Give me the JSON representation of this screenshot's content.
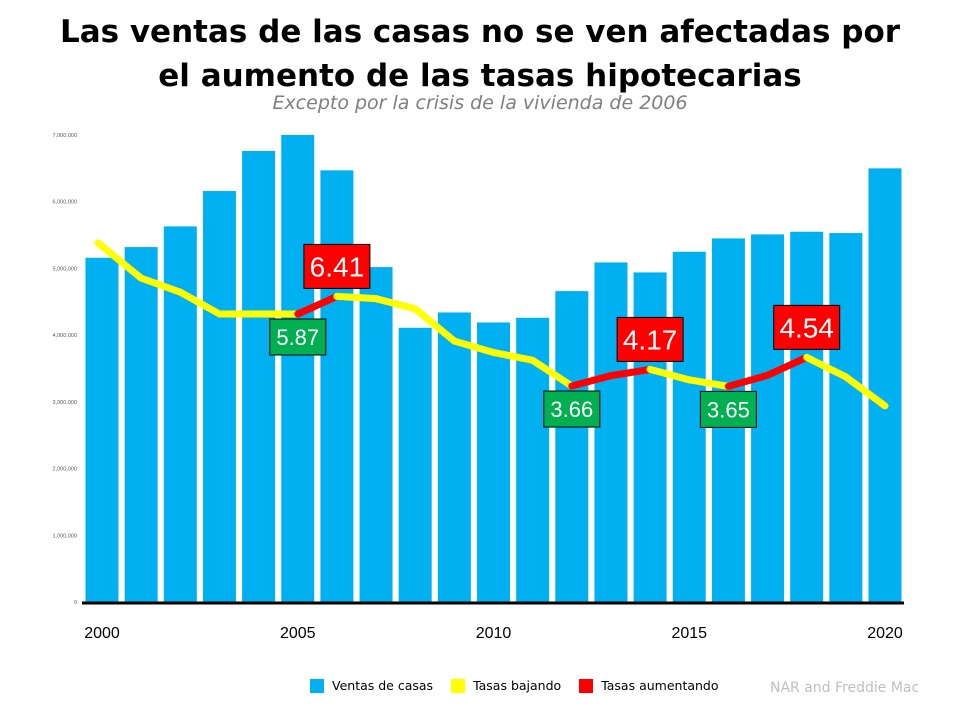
{
  "chart_data": {
    "type": "bar+line",
    "title": "Las ventas de las casas no se ven afectadas por el aumento de las tasas hipotecarias",
    "subtitle": "Excepto por la crisis de la vivienda de 2006",
    "categories": [
      2000,
      2001,
      2002,
      2003,
      2004,
      2005,
      2006,
      2007,
      2008,
      2009,
      2010,
      2011,
      2012,
      2013,
      2014,
      2015,
      2016,
      2017,
      2018,
      2019,
      2020
    ],
    "x_tick_labels": [
      "2000",
      "2005",
      "2010",
      "2015",
      "2020"
    ],
    "y_tick_labels": [
      "0",
      "1,000,000",
      "2,000,000",
      "3,000,000",
      "4,000,000",
      "5,000,000",
      "6,000,000",
      "7,000,000"
    ],
    "ylim": [
      0,
      7000000
    ],
    "grid": false,
    "legend_position": "bottom",
    "series": [
      {
        "name": "Ventas de casas",
        "type": "bar",
        "color": "#00B0F0",
        "values": [
          5160000,
          5320000,
          5630000,
          6160000,
          6760000,
          7000000,
          6470000,
          5020000,
          4110000,
          4340000,
          4190000,
          4260000,
          4660000,
          5090000,
          4940000,
          5250000,
          5450000,
          5510000,
          5550000,
          5530000,
          6500000
        ]
      },
      {
        "name": "Tasas bajando / Tasas aumentando",
        "type": "line",
        "values": [
          8.05,
          6.97,
          6.54,
          5.87,
          5.87,
          5.87,
          6.41,
          6.34,
          6.03,
          5.04,
          4.69,
          4.45,
          3.66,
          3.98,
          4.17,
          3.85,
          3.65,
          3.99,
          4.54,
          3.94,
          3.05
        ],
        "rising_segments": [
          [
            2005,
            2006
          ],
          [
            2012,
            2014
          ],
          [
            2016,
            2018
          ]
        ]
      }
    ],
    "legend": [
      {
        "label": "Ventas de casas",
        "color": "#00B0F0"
      },
      {
        "label": "Tasas bajando",
        "color": "#FFFF00"
      },
      {
        "label": "Tasas aumentando",
        "color": "#FF0000"
      }
    ],
    "annotations": [
      {
        "year": 2005,
        "text": "5.87",
        "kind": "low",
        "color": "#00B050"
      },
      {
        "year": 2006,
        "text": "6.41",
        "kind": "high",
        "color": "#FF0000"
      },
      {
        "year": 2012,
        "text": "3.66",
        "kind": "low",
        "color": "#00B050"
      },
      {
        "year": 2014,
        "text": "4.17",
        "kind": "high",
        "color": "#FF0000"
      },
      {
        "year": 2016,
        "text": "3.65",
        "kind": "low",
        "color": "#00B050"
      },
      {
        "year": 2018,
        "text": "4.54",
        "kind": "high",
        "color": "#FF0000"
      }
    ],
    "source": "NAR and Freddie Mac"
  }
}
